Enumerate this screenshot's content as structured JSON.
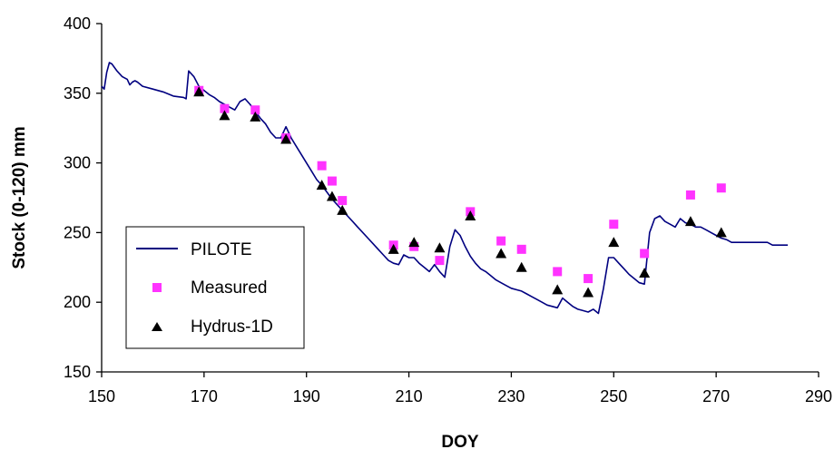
{
  "chart_data": {
    "type": "line",
    "title": "",
    "xlabel": "DOY",
    "ylabel": "Stock (0-120) mm",
    "xlim": [
      150,
      290
    ],
    "ylim": [
      150,
      400
    ],
    "xticks": [
      150,
      170,
      190,
      210,
      230,
      250,
      270,
      290
    ],
    "yticks": [
      150,
      200,
      250,
      300,
      350,
      400
    ],
    "legend_position": "lower-left",
    "grid": false,
    "series": [
      {
        "name": "PILOTE",
        "kind": "line",
        "color": "#000080",
        "points": [
          [
            150,
            355
          ],
          [
            150.5,
            353
          ],
          [
            151,
            365
          ],
          [
            151.5,
            372
          ],
          [
            152,
            371
          ],
          [
            153,
            366
          ],
          [
            154,
            362
          ],
          [
            155,
            360
          ],
          [
            155.5,
            356
          ],
          [
            156,
            358
          ],
          [
            156.5,
            359
          ],
          [
            157,
            358
          ],
          [
            158,
            355
          ],
          [
            160,
            353
          ],
          [
            162,
            351
          ],
          [
            164,
            348
          ],
          [
            166,
            347
          ],
          [
            166.5,
            346
          ],
          [
            167,
            366
          ],
          [
            168,
            362
          ],
          [
            169,
            355
          ],
          [
            170,
            352
          ],
          [
            171,
            349
          ],
          [
            172,
            347
          ],
          [
            173,
            344
          ],
          [
            174,
            342
          ],
          [
            175,
            340
          ],
          [
            176,
            338
          ],
          [
            177,
            344
          ],
          [
            178,
            346
          ],
          [
            179,
            342
          ],
          [
            180,
            337
          ],
          [
            181,
            332
          ],
          [
            182,
            328
          ],
          [
            183,
            322
          ],
          [
            184,
            318
          ],
          [
            185,
            318
          ],
          [
            186,
            326
          ],
          [
            187,
            318
          ],
          [
            188,
            312
          ],
          [
            189,
            306
          ],
          [
            190,
            300
          ],
          [
            191,
            294
          ],
          [
            192,
            288
          ],
          [
            193,
            284
          ],
          [
            194,
            279
          ],
          [
            195,
            274
          ],
          [
            196,
            270
          ],
          [
            197,
            266
          ],
          [
            198,
            262
          ],
          [
            199,
            258
          ],
          [
            200,
            254
          ],
          [
            201,
            250
          ],
          [
            202,
            246
          ],
          [
            203,
            242
          ],
          [
            204,
            238
          ],
          [
            205,
            234
          ],
          [
            206,
            230
          ],
          [
            207,
            228
          ],
          [
            208,
            227
          ],
          [
            209,
            234
          ],
          [
            210,
            232
          ],
          [
            211,
            232
          ],
          [
            212,
            228
          ],
          [
            213,
            225
          ],
          [
            214,
            222
          ],
          [
            215,
            227
          ],
          [
            216,
            222
          ],
          [
            217,
            218
          ],
          [
            218,
            240
          ],
          [
            219,
            252
          ],
          [
            220,
            248
          ],
          [
            221,
            240
          ],
          [
            222,
            233
          ],
          [
            223,
            228
          ],
          [
            224,
            224
          ],
          [
            225,
            222
          ],
          [
            226,
            219
          ],
          [
            227,
            216
          ],
          [
            228,
            214
          ],
          [
            229,
            212
          ],
          [
            230,
            210
          ],
          [
            231,
            209
          ],
          [
            232,
            208
          ],
          [
            233,
            206
          ],
          [
            234,
            204
          ],
          [
            235,
            202
          ],
          [
            236,
            200
          ],
          [
            237,
            198
          ],
          [
            238,
            197
          ],
          [
            239,
            196
          ],
          [
            240,
            203
          ],
          [
            241,
            200
          ],
          [
            242,
            197
          ],
          [
            243,
            195
          ],
          [
            244,
            194
          ],
          [
            245,
            193
          ],
          [
            246,
            195
          ],
          [
            247,
            192
          ],
          [
            248,
            210
          ],
          [
            249,
            232
          ],
          [
            250,
            232
          ],
          [
            251,
            228
          ],
          [
            252,
            224
          ],
          [
            253,
            220
          ],
          [
            254,
            217
          ],
          [
            255,
            214
          ],
          [
            256,
            213
          ],
          [
            257,
            250
          ],
          [
            258,
            260
          ],
          [
            259,
            262
          ],
          [
            260,
            258
          ],
          [
            261,
            256
          ],
          [
            262,
            254
          ],
          [
            263,
            260
          ],
          [
            264,
            257
          ],
          [
            265,
            256
          ],
          [
            266,
            254
          ],
          [
            267,
            254
          ],
          [
            268,
            252
          ],
          [
            269,
            250
          ],
          [
            270,
            248
          ],
          [
            271,
            246
          ],
          [
            272,
            245
          ],
          [
            273,
            243
          ],
          [
            275,
            243
          ],
          [
            280,
            243
          ],
          [
            281,
            241
          ],
          [
            284,
            241
          ]
        ]
      },
      {
        "name": "Measured",
        "kind": "marker",
        "marker": "square",
        "color": "#ff33ff",
        "points": [
          [
            169,
            352
          ],
          [
            174,
            339
          ],
          [
            180,
            338
          ],
          [
            186,
            318
          ],
          [
            193,
            298
          ],
          [
            195,
            287
          ],
          [
            197,
            273
          ],
          [
            207,
            241
          ],
          [
            211,
            240
          ],
          [
            216,
            230
          ],
          [
            222,
            265
          ],
          [
            228,
            244
          ],
          [
            232,
            238
          ],
          [
            239,
            222
          ],
          [
            245,
            217
          ],
          [
            250,
            256
          ],
          [
            256,
            235
          ],
          [
            265,
            277
          ],
          [
            271,
            282
          ]
        ]
      },
      {
        "name": "Hydrus-1D",
        "kind": "marker",
        "marker": "triangle",
        "color": "#000000",
        "points": [
          [
            169,
            351
          ],
          [
            174,
            334
          ],
          [
            180,
            333
          ],
          [
            186,
            317
          ],
          [
            193,
            284
          ],
          [
            195,
            276
          ],
          [
            197,
            266
          ],
          [
            207,
            238
          ],
          [
            211,
            243
          ],
          [
            216,
            239
          ],
          [
            222,
            262
          ],
          [
            228,
            235
          ],
          [
            232,
            225
          ],
          [
            239,
            209
          ],
          [
            245,
            207
          ],
          [
            250,
            243
          ],
          [
            256,
            221
          ],
          [
            265,
            258
          ],
          [
            271,
            250
          ]
        ]
      }
    ]
  }
}
